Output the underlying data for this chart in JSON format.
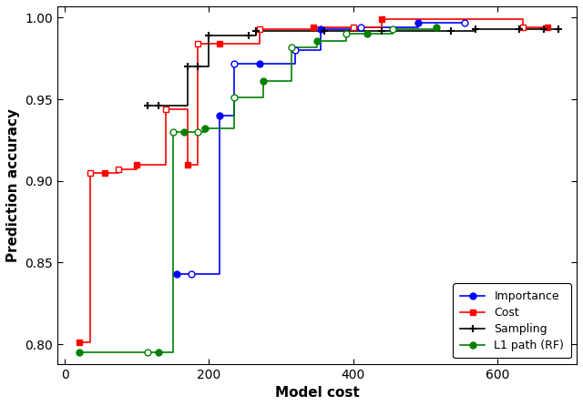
{
  "title": "",
  "xlabel": "Model cost",
  "ylabel": "Prediction accuracy",
  "xlim": [
    -10,
    710
  ],
  "ylim": [
    0.788,
    1.007
  ],
  "yticks": [
    0.8,
    0.85,
    0.9,
    0.95,
    1.0
  ],
  "xticks": [
    0,
    200,
    400,
    600
  ],
  "background_color": "#ffffff",
  "importance": {
    "x": [
      155,
      175,
      215,
      235,
      270,
      320,
      355,
      410,
      490,
      555
    ],
    "y": [
      0.843,
      0.843,
      0.94,
      0.972,
      0.972,
      0.98,
      0.993,
      0.994,
      0.997,
      0.997
    ],
    "color": "blue",
    "marker": "o",
    "label": "Importance"
  },
  "cost": {
    "x": [
      20,
      35,
      55,
      75,
      100,
      140,
      170,
      185,
      215,
      270,
      345,
      400,
      440,
      635,
      670
    ],
    "y": [
      0.801,
      0.905,
      0.905,
      0.907,
      0.91,
      0.944,
      0.91,
      0.984,
      0.984,
      0.993,
      0.994,
      0.994,
      0.999,
      0.994,
      0.994
    ],
    "color": "red",
    "marker": "s",
    "label": "Cost"
  },
  "sampling": {
    "x": [
      115,
      130,
      170,
      185,
      200,
      255,
      265,
      360,
      440,
      535,
      570,
      630,
      665,
      685
    ],
    "y": [
      0.946,
      0.946,
      0.97,
      0.97,
      0.989,
      0.989,
      0.992,
      0.992,
      0.992,
      0.992,
      0.993,
      0.993,
      0.993,
      0.993
    ],
    "color": "black",
    "marker": "+",
    "label": "Sampling"
  },
  "l1path": {
    "x": [
      20,
      115,
      130,
      150,
      165,
      185,
      195,
      235,
      275,
      315,
      350,
      390,
      420,
      455,
      515
    ],
    "y": [
      0.795,
      0.795,
      0.795,
      0.93,
      0.93,
      0.93,
      0.932,
      0.951,
      0.961,
      0.982,
      0.986,
      0.99,
      0.99,
      0.993,
      0.994
    ],
    "color": "green",
    "marker": "o",
    "label": "L1 path (RF)"
  }
}
